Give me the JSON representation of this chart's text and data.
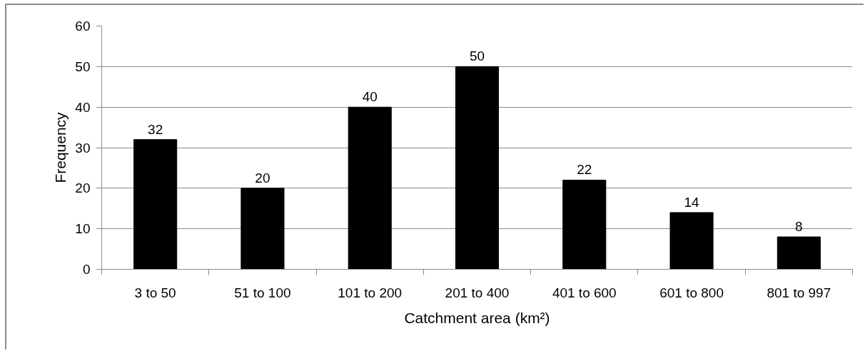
{
  "chart_data": {
    "type": "bar",
    "categories": [
      "3 to 50",
      "51 to 100",
      "101 to 200",
      "201 to 400",
      "401 to 600",
      "601 to 800",
      "801 to 997"
    ],
    "values": [
      32,
      20,
      40,
      50,
      22,
      14,
      8
    ],
    "color": "#000000",
    "xlabel": "Catchment area (km²)",
    "ylabel": "Frequency",
    "ylim": [
      0,
      60
    ],
    "yticks": [
      0,
      10,
      20,
      30,
      40,
      50,
      60
    ],
    "grid": "y",
    "data_labels": true
  }
}
